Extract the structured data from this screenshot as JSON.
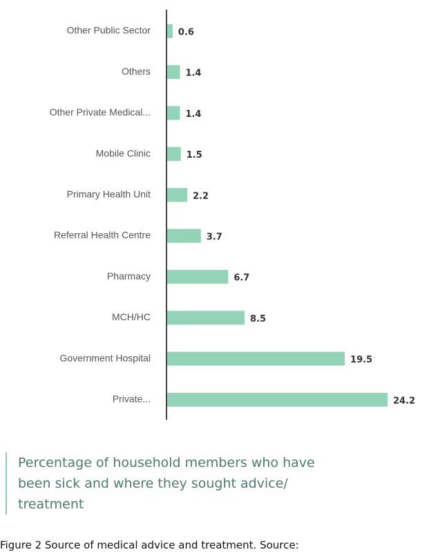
{
  "chart_data": {
    "type": "bar",
    "orientation": "horizontal",
    "title": "Percentage of household members who have been sick and where they sought advice/ treatment",
    "categories": [
      "Other Public Sector",
      "Others",
      "Other Private Medical...",
      "Mobile Clinic",
      "Primary Health Unit",
      "Referral Health Centre",
      "Pharmacy",
      "MCH/HC",
      "Government Hospital",
      "Private..."
    ],
    "values": [
      0.6,
      1.4,
      1.4,
      1.5,
      2.2,
      3.7,
      6.7,
      8.5,
      19.5,
      24.2
    ],
    "color": "#93d3b8"
  },
  "figure_caption": "Figure 2 Source of medical advice and treatment. Source:"
}
